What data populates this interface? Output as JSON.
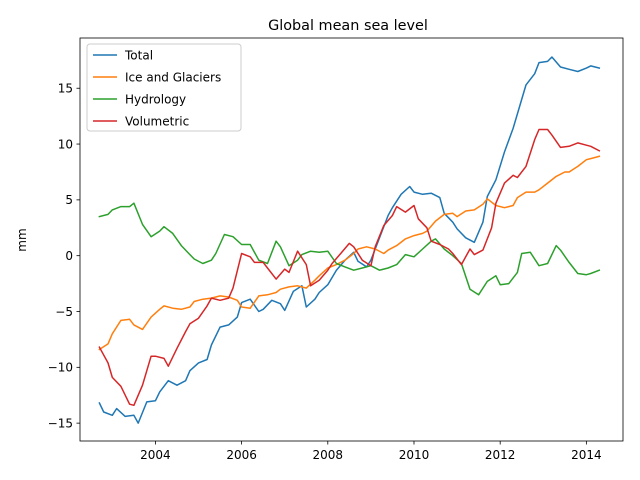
{
  "chart_data": {
    "type": "line",
    "title": "Global mean sea level",
    "xlabel": "",
    "ylabel": "mm",
    "xlim": [
      2002.25,
      2014.85
    ],
    "ylim": [
      -16.6,
      19.5
    ],
    "xticks": [
      2004,
      2006,
      2008,
      2010,
      2012,
      2014
    ],
    "yticks": [
      -15,
      -10,
      -5,
      0,
      5,
      10,
      15
    ],
    "xtick_labels": [
      "2004",
      "2006",
      "2008",
      "2010",
      "2012",
      "2014"
    ],
    "ytick_labels": [
      "−15",
      "−10",
      "−5",
      "0",
      "5",
      "10",
      "15"
    ],
    "grid": false,
    "legend_position": "top-left",
    "series": [
      {
        "name": "Total",
        "color": "#1f77b4",
        "points": [
          [
            2002.7,
            -13.2
          ],
          [
            2002.8,
            -14.0
          ],
          [
            2003.0,
            -14.3
          ],
          [
            2003.1,
            -13.7
          ],
          [
            2003.3,
            -14.4
          ],
          [
            2003.5,
            -14.3
          ],
          [
            2003.6,
            -15.0
          ],
          [
            2003.8,
            -13.1
          ],
          [
            2004.0,
            -13.0
          ],
          [
            2004.1,
            -12.2
          ],
          [
            2004.3,
            -11.2
          ],
          [
            2004.5,
            -11.6
          ],
          [
            2004.7,
            -11.2
          ],
          [
            2004.8,
            -10.3
          ],
          [
            2005.0,
            -9.6
          ],
          [
            2005.2,
            -9.3
          ],
          [
            2005.3,
            -8.0
          ],
          [
            2005.5,
            -6.4
          ],
          [
            2005.7,
            -6.2
          ],
          [
            2005.9,
            -5.5
          ],
          [
            2006.0,
            -4.2
          ],
          [
            2006.2,
            -3.9
          ],
          [
            2006.4,
            -5.0
          ],
          [
            2006.5,
            -4.8
          ],
          [
            2006.7,
            -4.0
          ],
          [
            2006.9,
            -4.3
          ],
          [
            2007.0,
            -4.9
          ],
          [
            2007.2,
            -3.2
          ],
          [
            2007.4,
            -2.7
          ],
          [
            2007.5,
            -4.6
          ],
          [
            2007.7,
            -3.9
          ],
          [
            2007.8,
            -3.3
          ],
          [
            2008.0,
            -2.6
          ],
          [
            2008.2,
            -1.3
          ],
          [
            2008.4,
            -0.4
          ],
          [
            2008.6,
            0.3
          ],
          [
            2008.7,
            -0.5
          ],
          [
            2008.9,
            -1.0
          ],
          [
            2009.0,
            -0.4
          ],
          [
            2009.2,
            1.6
          ],
          [
            2009.4,
            3.6
          ],
          [
            2009.5,
            4.3
          ],
          [
            2009.7,
            5.5
          ],
          [
            2009.9,
            6.2
          ],
          [
            2010.0,
            5.7
          ],
          [
            2010.2,
            5.5
          ],
          [
            2010.4,
            5.6
          ],
          [
            2010.6,
            5.2
          ],
          [
            2010.7,
            3.8
          ],
          [
            2010.9,
            3.0
          ],
          [
            2011.0,
            2.4
          ],
          [
            2011.2,
            1.6
          ],
          [
            2011.4,
            1.2
          ],
          [
            2011.6,
            3.0
          ],
          [
            2011.7,
            5.3
          ],
          [
            2011.9,
            6.8
          ],
          [
            2012.1,
            9.3
          ],
          [
            2012.3,
            11.4
          ],
          [
            2012.5,
            14.0
          ],
          [
            2012.6,
            15.3
          ],
          [
            2012.8,
            16.3
          ],
          [
            2012.9,
            17.3
          ],
          [
            2013.1,
            17.4
          ],
          [
            2013.2,
            17.8
          ],
          [
            2013.4,
            16.9
          ],
          [
            2013.6,
            16.7
          ],
          [
            2013.8,
            16.5
          ],
          [
            2014.0,
            16.8
          ],
          [
            2014.1,
            17.0
          ],
          [
            2014.3,
            16.8
          ]
        ]
      },
      {
        "name": "Ice and Glaciers",
        "color": "#ff7f0e",
        "points": [
          [
            2002.7,
            -8.4
          ],
          [
            2002.9,
            -7.9
          ],
          [
            2003.0,
            -7.0
          ],
          [
            2003.2,
            -5.8
          ],
          [
            2003.4,
            -5.7
          ],
          [
            2003.5,
            -6.2
          ],
          [
            2003.7,
            -6.6
          ],
          [
            2003.9,
            -5.5
          ],
          [
            2004.1,
            -4.8
          ],
          [
            2004.2,
            -4.5
          ],
          [
            2004.4,
            -4.7
          ],
          [
            2004.6,
            -4.8
          ],
          [
            2004.8,
            -4.6
          ],
          [
            2004.9,
            -4.1
          ],
          [
            2005.1,
            -3.9
          ],
          [
            2005.3,
            -3.8
          ],
          [
            2005.5,
            -3.6
          ],
          [
            2005.7,
            -3.7
          ],
          [
            2005.9,
            -4.0
          ],
          [
            2006.0,
            -4.6
          ],
          [
            2006.2,
            -4.7
          ],
          [
            2006.4,
            -3.6
          ],
          [
            2006.6,
            -3.5
          ],
          [
            2006.8,
            -3.3
          ],
          [
            2006.9,
            -3.0
          ],
          [
            2007.1,
            -2.8
          ],
          [
            2007.3,
            -2.7
          ],
          [
            2007.5,
            -2.9
          ],
          [
            2007.7,
            -2.2
          ],
          [
            2007.8,
            -1.8
          ],
          [
            2008.0,
            -1.1
          ],
          [
            2008.2,
            -0.8
          ],
          [
            2008.4,
            -0.4
          ],
          [
            2008.6,
            0.2
          ],
          [
            2008.7,
            0.6
          ],
          [
            2008.9,
            0.8
          ],
          [
            2009.1,
            0.6
          ],
          [
            2009.3,
            0.2
          ],
          [
            2009.4,
            0.5
          ],
          [
            2009.6,
            0.9
          ],
          [
            2009.8,
            1.5
          ],
          [
            2010.0,
            1.8
          ],
          [
            2010.2,
            2.0
          ],
          [
            2010.3,
            2.2
          ],
          [
            2010.5,
            3.1
          ],
          [
            2010.7,
            3.7
          ],
          [
            2010.9,
            3.8
          ],
          [
            2011.0,
            3.5
          ],
          [
            2011.2,
            4.0
          ],
          [
            2011.4,
            4.1
          ],
          [
            2011.6,
            4.6
          ],
          [
            2011.7,
            5.1
          ],
          [
            2011.9,
            4.5
          ],
          [
            2012.1,
            4.3
          ],
          [
            2012.3,
            4.5
          ],
          [
            2012.4,
            5.2
          ],
          [
            2012.6,
            5.7
          ],
          [
            2012.8,
            5.7
          ],
          [
            2012.9,
            5.9
          ],
          [
            2013.1,
            6.5
          ],
          [
            2013.3,
            7.1
          ],
          [
            2013.5,
            7.5
          ],
          [
            2013.6,
            7.5
          ],
          [
            2013.8,
            8.0
          ],
          [
            2014.0,
            8.6
          ],
          [
            2014.1,
            8.7
          ],
          [
            2014.3,
            8.9
          ]
        ]
      },
      {
        "name": "Hydrology",
        "color": "#2ca02c",
        "points": [
          [
            2002.7,
            3.5
          ],
          [
            2002.9,
            3.7
          ],
          [
            2003.0,
            4.1
          ],
          [
            2003.2,
            4.4
          ],
          [
            2003.4,
            4.4
          ],
          [
            2003.5,
            4.7
          ],
          [
            2003.7,
            2.8
          ],
          [
            2003.9,
            1.7
          ],
          [
            2004.1,
            2.2
          ],
          [
            2004.2,
            2.6
          ],
          [
            2004.4,
            2.0
          ],
          [
            2004.6,
            0.9
          ],
          [
            2004.8,
            0.1
          ],
          [
            2004.9,
            -0.3
          ],
          [
            2005.1,
            -0.7
          ],
          [
            2005.3,
            -0.4
          ],
          [
            2005.4,
            0.2
          ],
          [
            2005.6,
            1.9
          ],
          [
            2005.8,
            1.7
          ],
          [
            2006.0,
            1.0
          ],
          [
            2006.2,
            1.0
          ],
          [
            2006.4,
            -0.4
          ],
          [
            2006.6,
            -0.7
          ],
          [
            2006.8,
            1.3
          ],
          [
            2006.9,
            0.8
          ],
          [
            2007.1,
            -0.9
          ],
          [
            2007.3,
            -0.4
          ],
          [
            2007.4,
            0.1
          ],
          [
            2007.6,
            0.4
          ],
          [
            2007.8,
            0.3
          ],
          [
            2008.0,
            0.4
          ],
          [
            2008.2,
            -0.7
          ],
          [
            2008.4,
            -1.0
          ],
          [
            2008.6,
            -1.3
          ],
          [
            2008.8,
            -1.1
          ],
          [
            2009.0,
            -0.9
          ],
          [
            2009.2,
            -1.3
          ],
          [
            2009.4,
            -1.1
          ],
          [
            2009.6,
            -0.8
          ],
          [
            2009.8,
            0.1
          ],
          [
            2010.0,
            -0.1
          ],
          [
            2010.2,
            0.6
          ],
          [
            2010.4,
            1.3
          ],
          [
            2010.5,
            1.5
          ],
          [
            2010.7,
            0.6
          ],
          [
            2010.9,
            0.0
          ],
          [
            2011.1,
            -0.7
          ],
          [
            2011.3,
            -3.0
          ],
          [
            2011.5,
            -3.5
          ],
          [
            2011.7,
            -2.3
          ],
          [
            2011.9,
            -1.8
          ],
          [
            2012.0,
            -2.6
          ],
          [
            2012.2,
            -2.5
          ],
          [
            2012.4,
            -1.5
          ],
          [
            2012.5,
            0.2
          ],
          [
            2012.7,
            0.3
          ],
          [
            2012.9,
            -0.9
          ],
          [
            2013.1,
            -0.7
          ],
          [
            2013.3,
            0.9
          ],
          [
            2013.4,
            0.5
          ],
          [
            2013.6,
            -0.6
          ],
          [
            2013.8,
            -1.6
          ],
          [
            2014.0,
            -1.7
          ],
          [
            2014.1,
            -1.6
          ],
          [
            2014.3,
            -1.3
          ]
        ]
      },
      {
        "name": "Volumetric",
        "color": "#d62728",
        "points": [
          [
            2002.7,
            -8.2
          ],
          [
            2002.9,
            -9.6
          ],
          [
            2003.0,
            -10.9
          ],
          [
            2003.2,
            -11.7
          ],
          [
            2003.4,
            -13.3
          ],
          [
            2003.5,
            -13.4
          ],
          [
            2003.7,
            -11.6
          ],
          [
            2003.9,
            -9.0
          ],
          [
            2004.0,
            -9.0
          ],
          [
            2004.2,
            -9.2
          ],
          [
            2004.3,
            -9.9
          ],
          [
            2004.5,
            -8.3
          ],
          [
            2004.7,
            -6.8
          ],
          [
            2004.8,
            -6.1
          ],
          [
            2005.0,
            -5.6
          ],
          [
            2005.2,
            -4.5
          ],
          [
            2005.3,
            -3.8
          ],
          [
            2005.5,
            -4.0
          ],
          [
            2005.7,
            -3.8
          ],
          [
            2005.8,
            -2.9
          ],
          [
            2006.0,
            0.2
          ],
          [
            2006.2,
            -0.1
          ],
          [
            2006.3,
            -0.6
          ],
          [
            2006.5,
            -0.6
          ],
          [
            2006.6,
            -1.1
          ],
          [
            2006.8,
            -2.1
          ],
          [
            2007.0,
            -1.2
          ],
          [
            2007.1,
            -1.5
          ],
          [
            2007.3,
            0.4
          ],
          [
            2007.5,
            -0.8
          ],
          [
            2007.6,
            -2.7
          ],
          [
            2007.8,
            -2.2
          ],
          [
            2008.0,
            -1.3
          ],
          [
            2008.1,
            -0.7
          ],
          [
            2008.3,
            0.2
          ],
          [
            2008.5,
            1.1
          ],
          [
            2008.6,
            0.8
          ],
          [
            2008.8,
            -0.4
          ],
          [
            2009.0,
            -0.9
          ],
          [
            2009.1,
            0.8
          ],
          [
            2009.3,
            2.7
          ],
          [
            2009.5,
            3.6
          ],
          [
            2009.6,
            4.4
          ],
          [
            2009.8,
            3.9
          ],
          [
            2010.0,
            4.5
          ],
          [
            2010.1,
            3.3
          ],
          [
            2010.3,
            2.5
          ],
          [
            2010.4,
            1.3
          ],
          [
            2010.6,
            1.0
          ],
          [
            2010.8,
            0.6
          ],
          [
            2010.9,
            0.2
          ],
          [
            2011.1,
            -0.8
          ],
          [
            2011.3,
            0.6
          ],
          [
            2011.4,
            0.1
          ],
          [
            2011.6,
            0.5
          ],
          [
            2011.8,
            2.5
          ],
          [
            2011.9,
            4.7
          ],
          [
            2012.1,
            6.5
          ],
          [
            2012.3,
            7.2
          ],
          [
            2012.4,
            7.0
          ],
          [
            2012.6,
            8.0
          ],
          [
            2012.8,
            10.4
          ],
          [
            2012.9,
            11.3
          ],
          [
            2013.1,
            11.3
          ],
          [
            2013.2,
            10.8
          ],
          [
            2013.4,
            9.7
          ],
          [
            2013.6,
            9.8
          ],
          [
            2013.8,
            10.1
          ],
          [
            2014.0,
            9.9
          ],
          [
            2014.1,
            9.8
          ],
          [
            2014.3,
            9.4
          ]
        ]
      }
    ]
  }
}
